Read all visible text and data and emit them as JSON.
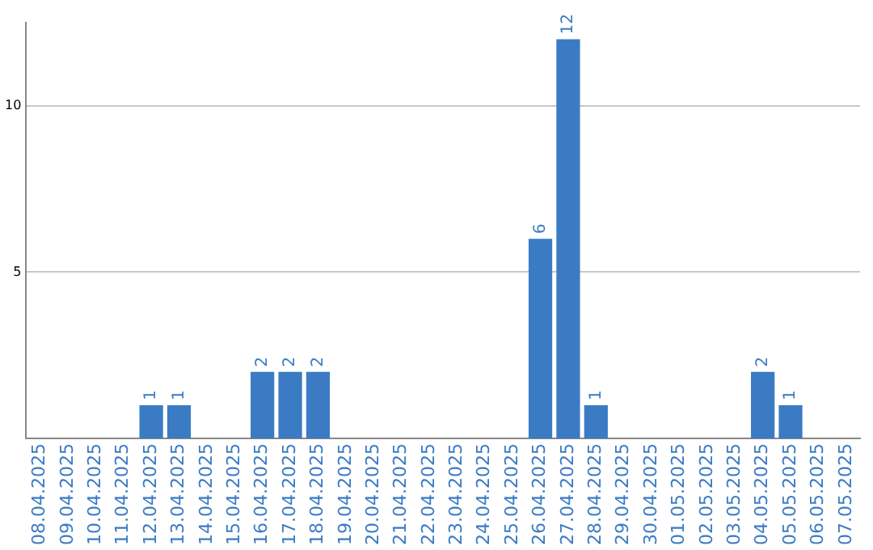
{
  "chart_data": {
    "type": "bar",
    "categories": [
      "08.04.2025",
      "09.04.2025",
      "10.04.2025",
      "11.04.2025",
      "12.04.2025",
      "13.04.2025",
      "14.04.2025",
      "15.04.2025",
      "16.04.2025",
      "17.04.2025",
      "18.04.2025",
      "19.04.2025",
      "20.04.2025",
      "21.04.2025",
      "22.04.2025",
      "23.04.2025",
      "24.04.2025",
      "25.04.2025",
      "26.04.2025",
      "27.04.2025",
      "28.04.2025",
      "29.04.2025",
      "30.04.2025",
      "01.05.2025",
      "02.05.2025",
      "03.05.2025",
      "04.05.2025",
      "05.05.2025",
      "06.05.2025",
      "07.05.2025"
    ],
    "values": [
      0,
      0,
      0,
      0,
      1,
      1,
      0,
      0,
      2,
      2,
      2,
      0,
      0,
      0,
      0,
      0,
      0,
      0,
      6,
      12,
      1,
      0,
      0,
      0,
      0,
      0,
      2,
      1,
      0,
      0
    ],
    "value_labels": [
      null,
      null,
      null,
      null,
      "1",
      "1",
      null,
      null,
      "2",
      "2",
      "2",
      null,
      null,
      null,
      null,
      null,
      null,
      null,
      "6",
      "12",
      "1",
      null,
      null,
      null,
      null,
      null,
      "2",
      "1",
      null,
      null
    ],
    "color": "#3b7bc4",
    "ylim": [
      0,
      12.5
    ],
    "yticks": [
      5,
      10
    ],
    "grid": "y",
    "legend": false
  }
}
